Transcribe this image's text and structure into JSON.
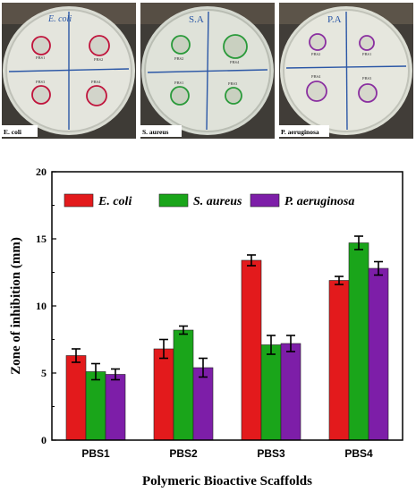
{
  "photos": [
    {
      "caption": "E. coli",
      "plate_label": "E. coli",
      "labels": [
        "PBS1",
        "PBS2",
        "PBS3",
        "PBS4"
      ],
      "ring_color": "#c0143c",
      "fill_color": "#cfd2c8"
    },
    {
      "caption": "S. aureus",
      "plate_label": "S.A",
      "labels": [
        "PBS2",
        "PBS4",
        "PBS1",
        "PBS3"
      ],
      "ring_color": "#2a9a3a",
      "fill_color": "#c9d0c0"
    },
    {
      "caption": "P. aeruginosa",
      "plate_label": "P.A",
      "labels": [
        "PBS2",
        "PBS1",
        "PBS4",
        "PBS3"
      ],
      "ring_color": "#8a2fa0",
      "fill_color": "#d6d8cc"
    }
  ],
  "chart_data": {
    "type": "bar",
    "categories": [
      "PBS1",
      "PBS2",
      "PBS3",
      "PBS4"
    ],
    "series": [
      {
        "name": "E. coli",
        "color": "#e31a1c",
        "values": [
          6.3,
          6.8,
          13.4,
          11.9
        ],
        "errors": [
          0.5,
          0.7,
          0.4,
          0.3
        ]
      },
      {
        "name": "S. aureus",
        "color": "#1aa51a",
        "values": [
          5.1,
          8.2,
          7.1,
          14.7
        ],
        "errors": [
          0.6,
          0.3,
          0.7,
          0.5
        ]
      },
      {
        "name": "P. aeruginosa",
        "color": "#7d1ea8",
        "values": [
          4.9,
          5.4,
          7.2,
          12.8
        ],
        "errors": [
          0.4,
          0.7,
          0.6,
          0.5
        ]
      }
    ],
    "xlabel": "Polymeric Bioactive Scaffolds",
    "ylabel": "Zone of inhibition (mm)",
    "ylim": [
      0,
      20
    ],
    "yticks": [
      0,
      5,
      10,
      15,
      20
    ],
    "legend_position": "top"
  }
}
